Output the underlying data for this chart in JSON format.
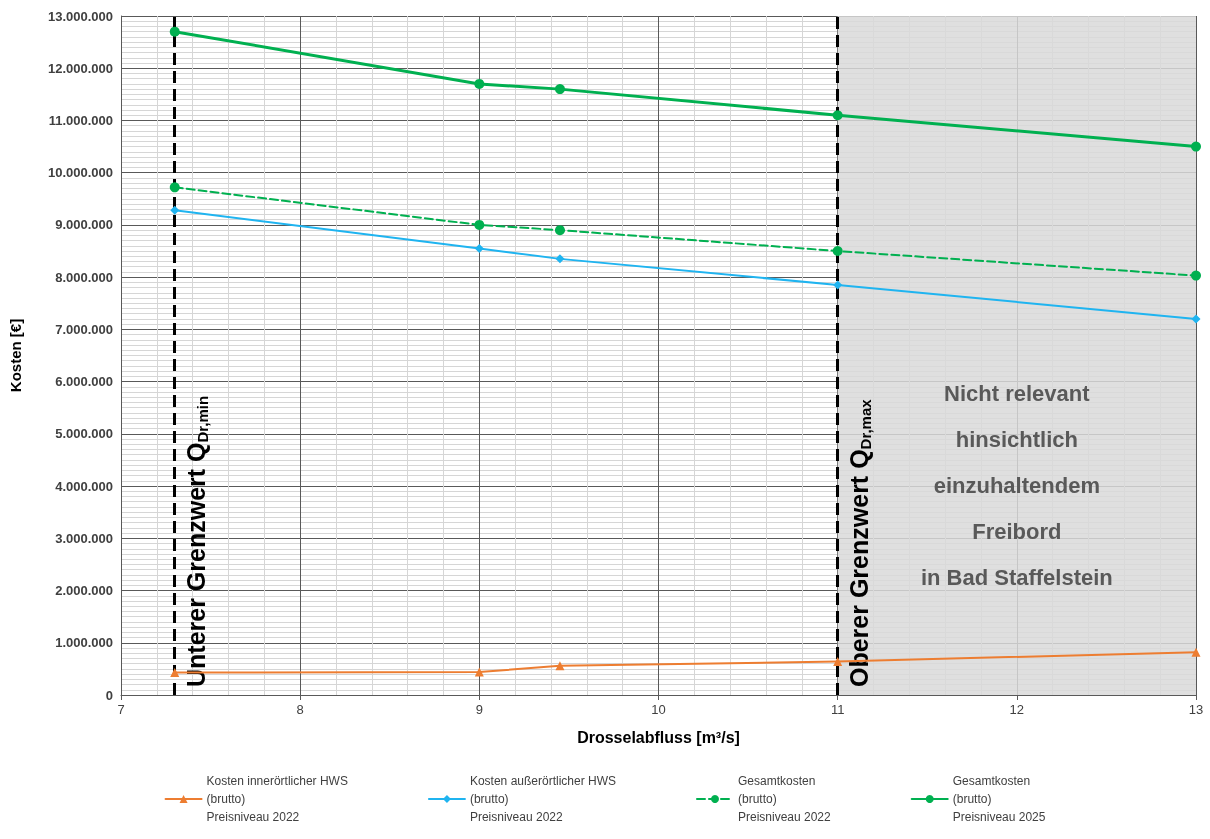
{
  "chart_data": {
    "type": "line",
    "xlabel": "Drosselabfluss [m³/s]",
    "ylabel": "Kosten [€]",
    "x": [
      7.3,
      9,
      9.45,
      11,
      13
    ],
    "series": [
      {
        "name": "Kosten innerörtlicher HWS\n(brutto)\nPreisniveau 2022",
        "color": "#ed7d31",
        "marker": "triangle",
        "line_style": "solid",
        "values": [
          430000,
          440000,
          560000,
          640000,
          820000
        ]
      },
      {
        "name": "Kosten außerörtlicher HWS\n(brutto)\nPreisniveau 2022",
        "color": "#1fb4f0",
        "marker": "diamond",
        "line_style": "solid",
        "values": [
          9280000,
          8550000,
          8350000,
          7850000,
          7200000
        ]
      },
      {
        "name": "Gesamtkosten\n(brutto)\nPreisniveau 2022",
        "color": "#00b050",
        "marker": "circle",
        "line_style": "dashed",
        "values": [
          9720000,
          9000000,
          8900000,
          8500000,
          8030000
        ]
      },
      {
        "name": "Gesamtkosten\n(brutto)\nPreisniveau 2025",
        "color": "#00b050",
        "marker": "circle",
        "line_style": "solid",
        "values": [
          12700000,
          11700000,
          11600000,
          11100000,
          10500000
        ]
      }
    ],
    "xlim": [
      7,
      13
    ],
    "xticks": [
      7,
      8,
      9,
      10,
      11,
      12,
      13
    ],
    "ylim": [
      0,
      13000000
    ],
    "yticks": [
      0,
      {
        "value": 1000000,
        "label": "1.000.000"
      },
      {
        "value": 2000000,
        "label": "2.000.000"
      },
      {
        "value": 3000000,
        "label": "3.000.000"
      },
      {
        "value": 4000000,
        "label": "4.000.000"
      },
      {
        "value": 5000000,
        "label": "5.000.000"
      },
      {
        "value": 6000000,
        "label": "6.000.000"
      },
      {
        "value": 7000000,
        "label": "7.000.000"
      },
      {
        "value": 8000000,
        "label": "8.000.000"
      },
      {
        "value": 9000000,
        "label": "9.000.000"
      },
      {
        "value": 10000000,
        "label": "10.000.000"
      },
      {
        "value": 11000000,
        "label": "11.000.000"
      },
      {
        "value": 12000000,
        "label": "12.000.000"
      },
      {
        "value": 13000000,
        "label": "13.000.000"
      }
    ],
    "ref_lines": [
      {
        "axis": "x",
        "value": 7.3,
        "label": "Unterer Grenzwert Q$_{Dr,min}$",
        "color": "#000000",
        "line_style": "dashed"
      },
      {
        "axis": "x",
        "value": 11,
        "label": "Oberer Grenzwert Q$_{Dr,max}$",
        "color": "#000000",
        "line_style": "dashed"
      }
    ],
    "bands": [
      {
        "axis": "x",
        "from": 11,
        "to": 13,
        "label": "Nicht relevant\nhinsichtlich\neinzuhaltendem\nFreibord\nin Bad Staffelstein",
        "color": "#d9d9d9"
      }
    ],
    "grid": true,
    "legend": "bottom"
  }
}
